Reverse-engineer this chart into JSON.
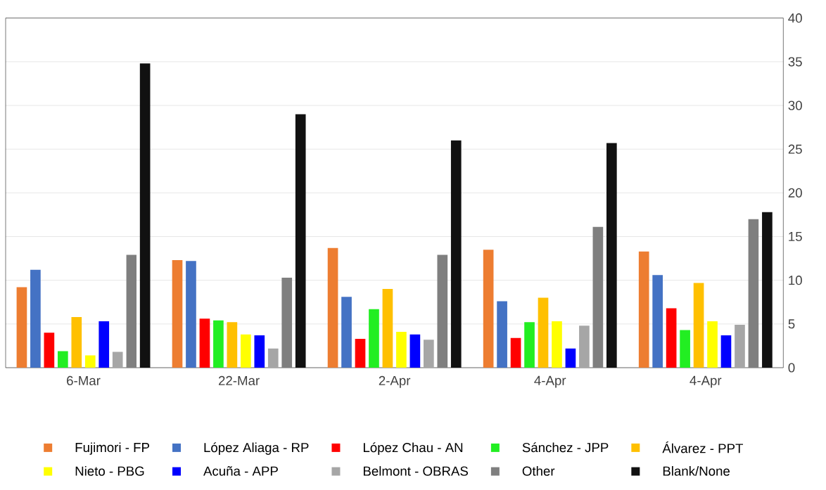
{
  "chart_data": {
    "type": "bar",
    "categories": [
      "6-Mar",
      "22-Mar",
      "2-Apr",
      "4-Apr",
      "4-Apr"
    ],
    "series": [
      {
        "name": "Fujimori - FP",
        "color": "#ed7d31",
        "values": [
          9.2,
          12.3,
          13.7,
          13.5,
          13.3
        ]
      },
      {
        "name": "López Aliaga - RP",
        "color": "#4472c4",
        "values": [
          11.2,
          12.2,
          8.1,
          7.6,
          10.6
        ]
      },
      {
        "name": "López Chau - AN",
        "color": "#ff0000",
        "values": [
          4.0,
          5.6,
          3.3,
          3.4,
          6.8
        ]
      },
      {
        "name": "Sánchez - JPP",
        "color": "#22ee22",
        "values": [
          1.9,
          5.4,
          6.7,
          5.2,
          4.3
        ]
      },
      {
        "name": "Álvarez - PPT",
        "color": "#ffc000",
        "values": [
          5.8,
          5.2,
          9.0,
          8.0,
          9.7
        ]
      },
      {
        "name": "Nieto - PBG",
        "color": "#ffff00",
        "values": [
          1.4,
          3.8,
          4.1,
          5.3,
          5.3
        ]
      },
      {
        "name": "Acuña - APP",
        "color": "#0000ff",
        "values": [
          5.3,
          3.7,
          3.8,
          2.2,
          3.7
        ]
      },
      {
        "name": "Belmont - OBRAS",
        "color": "#a6a6a6",
        "values": [
          1.8,
          2.2,
          3.2,
          4.8,
          4.9
        ]
      },
      {
        "name": "Other",
        "color": "#7f7f7f",
        "values": [
          12.9,
          10.3,
          12.9,
          16.1,
          17.0
        ]
      },
      {
        "name": "Blank/None",
        "color": "#111111",
        "values": [
          34.8,
          29.0,
          26.0,
          25.7,
          17.8
        ]
      }
    ],
    "ylim": [
      0,
      40
    ],
    "yticks": [
      0,
      5,
      10,
      15,
      20,
      25,
      30,
      35,
      40
    ],
    "grid": "y",
    "legend": "bottom"
  }
}
